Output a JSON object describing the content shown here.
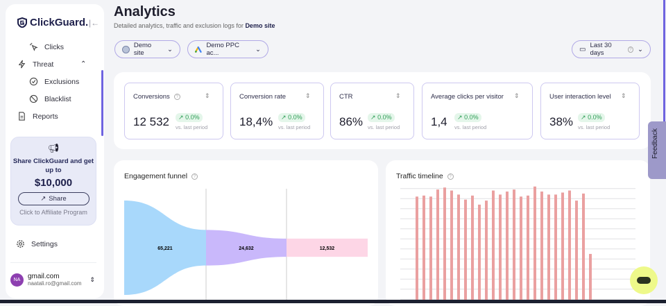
{
  "sidebar": {
    "logo": "ClickGuard.",
    "items": [
      {
        "label": "Clicks",
        "icon": "cursor-click-icon"
      },
      {
        "label": "Threat",
        "icon": "lightning-icon"
      },
      {
        "label": "Exclusions",
        "icon": "check-circle-icon"
      },
      {
        "label": "Blacklist",
        "icon": "ban-icon"
      },
      {
        "label": "Reports",
        "icon": "document-icon"
      }
    ],
    "promo": {
      "title": "Share ClickGuard and get up to",
      "amount": "$10,000",
      "button": "Share",
      "link": "Click to Affiliate Program"
    },
    "settings": "Settings",
    "user": {
      "initials": "NA",
      "name": "gmail.com",
      "email": "naatali.ro@gmail.com"
    }
  },
  "header": {
    "title": "Analytics",
    "subtitle": "Detailed analytics, traffic and exclusion logs for ",
    "site": "Demo site"
  },
  "filters": {
    "site": "Demo site",
    "account": "Demo PPC ac...",
    "period": "Last 30 days"
  },
  "metrics": [
    {
      "label": "Conversions",
      "value": "12 532",
      "change": "0.0%",
      "vs": "vs. last period"
    },
    {
      "label": "Conversion rate",
      "value": "18,4%",
      "change": "0.0%",
      "vs": "vs. last period"
    },
    {
      "label": "CTR",
      "value": "86%",
      "change": "0.0%",
      "vs": "vs. last period"
    },
    {
      "label": "Average clicks per visitor",
      "value": "1,4",
      "change": "0.0%",
      "vs": "vs. last period"
    },
    {
      "label": "User interaction level",
      "value": "38%",
      "change": "0.0%",
      "vs": "vs. last period"
    }
  ],
  "funnel": {
    "title": "Engagement funnel",
    "stages": [
      {
        "value": 65221,
        "label": "65,221",
        "color": "#a8d8fb"
      },
      {
        "value": 24632,
        "label": "24,632",
        "color": "#c9b8fb"
      },
      {
        "value": 12532,
        "label": "12,532",
        "color": "#fdd6e6"
      }
    ]
  },
  "chart_data": {
    "type": "bar",
    "title": "Traffic timeline",
    "color": "#eaa0a0",
    "grid": true,
    "values": [
      0.3,
      10.6,
      10.7,
      10.6,
      11.3,
      11.5,
      11.2,
      10.8,
      10.3,
      10.7,
      9.8,
      10.2,
      11.2,
      10.8,
      11.1,
      11.3,
      10.6,
      10.7,
      11.6,
      11.1,
      10.8,
      10.8,
      11.0,
      11.2,
      10.2,
      10.9,
      4.9
    ]
  },
  "feedback": "Feedback"
}
